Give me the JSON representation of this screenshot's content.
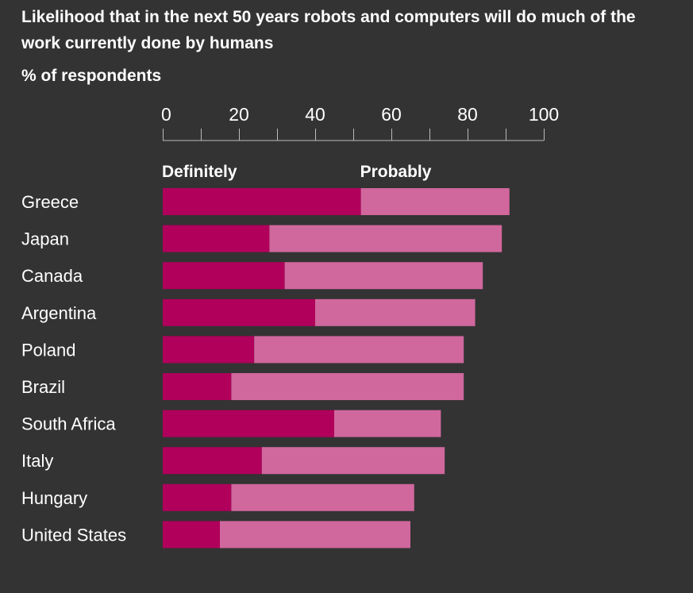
{
  "chart_data": {
    "type": "bar",
    "stacked": true,
    "orientation": "horizontal",
    "title": "Likelihood that in the next 50 years robots and computers will do much of the work currently done by humans",
    "subtitle": "% of respondents",
    "xlim": [
      0,
      100
    ],
    "x_ticks": [
      0,
      20,
      40,
      60,
      80,
      100
    ],
    "x_tick_labels": [
      "0",
      "20",
      "40",
      "60",
      "80",
      "100"
    ],
    "categories": [
      "Greece",
      "Japan",
      "Canada",
      "Argentina",
      "Poland",
      "Brazil",
      "South Africa",
      "Italy",
      "Hungary",
      "United States"
    ],
    "series": [
      {
        "name": "Definitely",
        "color": "#b0005b",
        "values": [
          52,
          28,
          32,
          40,
          24,
          18,
          45,
          26,
          18,
          15
        ]
      },
      {
        "name": "Probably",
        "color": "#d0679d",
        "values": [
          39,
          61,
          52,
          42,
          55,
          61,
          28,
          48,
          48,
          50
        ]
      }
    ],
    "legend_placement": "top, above bars"
  }
}
